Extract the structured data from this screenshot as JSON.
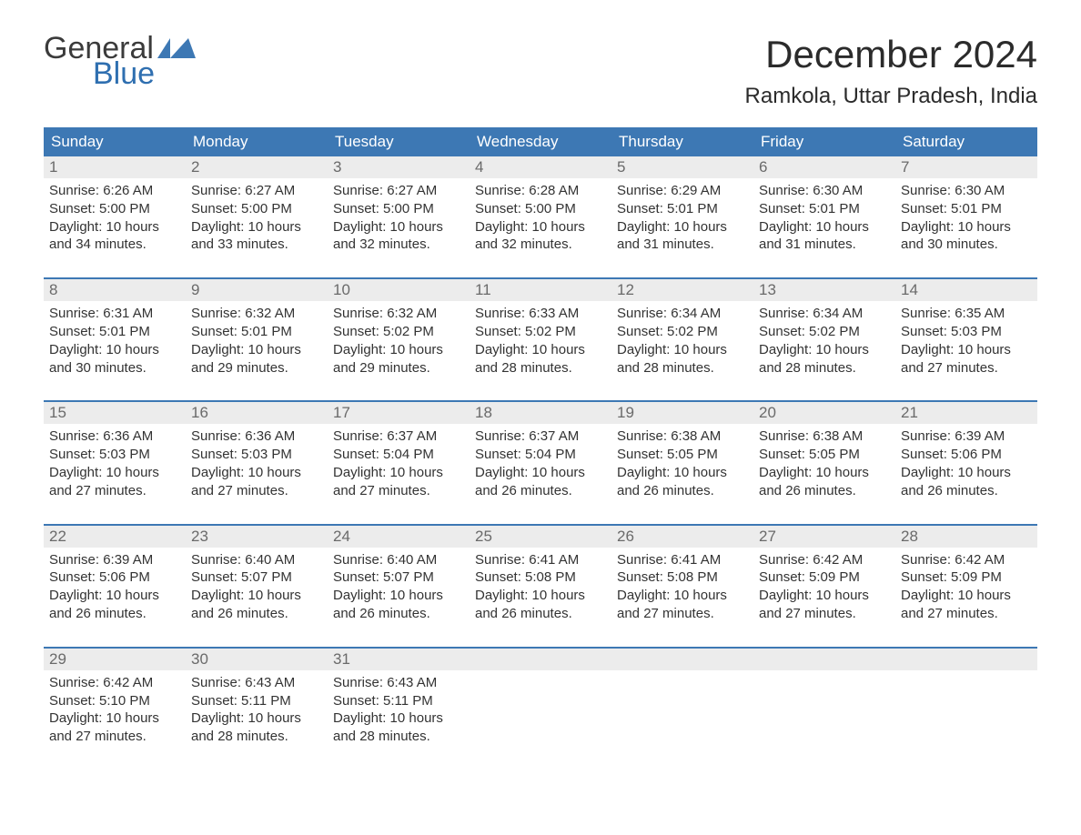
{
  "logo": {
    "word1": "General",
    "word2": "Blue",
    "mark_color": "#3d78b4"
  },
  "title": "December 2024",
  "location": "Ramkola, Uttar Pradesh, India",
  "colors": {
    "header_bg": "#3d78b4",
    "header_text": "#ffffff",
    "date_strip_bg": "#ececec",
    "date_num_color": "#6a6a6a",
    "body_text": "#333333",
    "week_border": "#3d78b4"
  },
  "typography": {
    "title_fontsize": 42,
    "location_fontsize": 24,
    "header_fontsize": 17,
    "date_fontsize": 17,
    "entry_fontsize": 15
  },
  "day_names": [
    "Sunday",
    "Monday",
    "Tuesday",
    "Wednesday",
    "Thursday",
    "Friday",
    "Saturday"
  ],
  "weeks": [
    [
      {
        "d": "1",
        "sr": "Sunrise: 6:26 AM",
        "ss": "Sunset: 5:00 PM",
        "dl1": "Daylight: 10 hours",
        "dl2": "and 34 minutes."
      },
      {
        "d": "2",
        "sr": "Sunrise: 6:27 AM",
        "ss": "Sunset: 5:00 PM",
        "dl1": "Daylight: 10 hours",
        "dl2": "and 33 minutes."
      },
      {
        "d": "3",
        "sr": "Sunrise: 6:27 AM",
        "ss": "Sunset: 5:00 PM",
        "dl1": "Daylight: 10 hours",
        "dl2": "and 32 minutes."
      },
      {
        "d": "4",
        "sr": "Sunrise: 6:28 AM",
        "ss": "Sunset: 5:00 PM",
        "dl1": "Daylight: 10 hours",
        "dl2": "and 32 minutes."
      },
      {
        "d": "5",
        "sr": "Sunrise: 6:29 AM",
        "ss": "Sunset: 5:01 PM",
        "dl1": "Daylight: 10 hours",
        "dl2": "and 31 minutes."
      },
      {
        "d": "6",
        "sr": "Sunrise: 6:30 AM",
        "ss": "Sunset: 5:01 PM",
        "dl1": "Daylight: 10 hours",
        "dl2": "and 31 minutes."
      },
      {
        "d": "7",
        "sr": "Sunrise: 6:30 AM",
        "ss": "Sunset: 5:01 PM",
        "dl1": "Daylight: 10 hours",
        "dl2": "and 30 minutes."
      }
    ],
    [
      {
        "d": "8",
        "sr": "Sunrise: 6:31 AM",
        "ss": "Sunset: 5:01 PM",
        "dl1": "Daylight: 10 hours",
        "dl2": "and 30 minutes."
      },
      {
        "d": "9",
        "sr": "Sunrise: 6:32 AM",
        "ss": "Sunset: 5:01 PM",
        "dl1": "Daylight: 10 hours",
        "dl2": "and 29 minutes."
      },
      {
        "d": "10",
        "sr": "Sunrise: 6:32 AM",
        "ss": "Sunset: 5:02 PM",
        "dl1": "Daylight: 10 hours",
        "dl2": "and 29 minutes."
      },
      {
        "d": "11",
        "sr": "Sunrise: 6:33 AM",
        "ss": "Sunset: 5:02 PM",
        "dl1": "Daylight: 10 hours",
        "dl2": "and 28 minutes."
      },
      {
        "d": "12",
        "sr": "Sunrise: 6:34 AM",
        "ss": "Sunset: 5:02 PM",
        "dl1": "Daylight: 10 hours",
        "dl2": "and 28 minutes."
      },
      {
        "d": "13",
        "sr": "Sunrise: 6:34 AM",
        "ss": "Sunset: 5:02 PM",
        "dl1": "Daylight: 10 hours",
        "dl2": "and 28 minutes."
      },
      {
        "d": "14",
        "sr": "Sunrise: 6:35 AM",
        "ss": "Sunset: 5:03 PM",
        "dl1": "Daylight: 10 hours",
        "dl2": "and 27 minutes."
      }
    ],
    [
      {
        "d": "15",
        "sr": "Sunrise: 6:36 AM",
        "ss": "Sunset: 5:03 PM",
        "dl1": "Daylight: 10 hours",
        "dl2": "and 27 minutes."
      },
      {
        "d": "16",
        "sr": "Sunrise: 6:36 AM",
        "ss": "Sunset: 5:03 PM",
        "dl1": "Daylight: 10 hours",
        "dl2": "and 27 minutes."
      },
      {
        "d": "17",
        "sr": "Sunrise: 6:37 AM",
        "ss": "Sunset: 5:04 PM",
        "dl1": "Daylight: 10 hours",
        "dl2": "and 27 minutes."
      },
      {
        "d": "18",
        "sr": "Sunrise: 6:37 AM",
        "ss": "Sunset: 5:04 PM",
        "dl1": "Daylight: 10 hours",
        "dl2": "and 26 minutes."
      },
      {
        "d": "19",
        "sr": "Sunrise: 6:38 AM",
        "ss": "Sunset: 5:05 PM",
        "dl1": "Daylight: 10 hours",
        "dl2": "and 26 minutes."
      },
      {
        "d": "20",
        "sr": "Sunrise: 6:38 AM",
        "ss": "Sunset: 5:05 PM",
        "dl1": "Daylight: 10 hours",
        "dl2": "and 26 minutes."
      },
      {
        "d": "21",
        "sr": "Sunrise: 6:39 AM",
        "ss": "Sunset: 5:06 PM",
        "dl1": "Daylight: 10 hours",
        "dl2": "and 26 minutes."
      }
    ],
    [
      {
        "d": "22",
        "sr": "Sunrise: 6:39 AM",
        "ss": "Sunset: 5:06 PM",
        "dl1": "Daylight: 10 hours",
        "dl2": "and 26 minutes."
      },
      {
        "d": "23",
        "sr": "Sunrise: 6:40 AM",
        "ss": "Sunset: 5:07 PM",
        "dl1": "Daylight: 10 hours",
        "dl2": "and 26 minutes."
      },
      {
        "d": "24",
        "sr": "Sunrise: 6:40 AM",
        "ss": "Sunset: 5:07 PM",
        "dl1": "Daylight: 10 hours",
        "dl2": "and 26 minutes."
      },
      {
        "d": "25",
        "sr": "Sunrise: 6:41 AM",
        "ss": "Sunset: 5:08 PM",
        "dl1": "Daylight: 10 hours",
        "dl2": "and 26 minutes."
      },
      {
        "d": "26",
        "sr": "Sunrise: 6:41 AM",
        "ss": "Sunset: 5:08 PM",
        "dl1": "Daylight: 10 hours",
        "dl2": "and 27 minutes."
      },
      {
        "d": "27",
        "sr": "Sunrise: 6:42 AM",
        "ss": "Sunset: 5:09 PM",
        "dl1": "Daylight: 10 hours",
        "dl2": "and 27 minutes."
      },
      {
        "d": "28",
        "sr": "Sunrise: 6:42 AM",
        "ss": "Sunset: 5:09 PM",
        "dl1": "Daylight: 10 hours",
        "dl2": "and 27 minutes."
      }
    ],
    [
      {
        "d": "29",
        "sr": "Sunrise: 6:42 AM",
        "ss": "Sunset: 5:10 PM",
        "dl1": "Daylight: 10 hours",
        "dl2": "and 27 minutes."
      },
      {
        "d": "30",
        "sr": "Sunrise: 6:43 AM",
        "ss": "Sunset: 5:11 PM",
        "dl1": "Daylight: 10 hours",
        "dl2": "and 28 minutes."
      },
      {
        "d": "31",
        "sr": "Sunrise: 6:43 AM",
        "ss": "Sunset: 5:11 PM",
        "dl1": "Daylight: 10 hours",
        "dl2": "and 28 minutes."
      },
      null,
      null,
      null,
      null
    ]
  ]
}
